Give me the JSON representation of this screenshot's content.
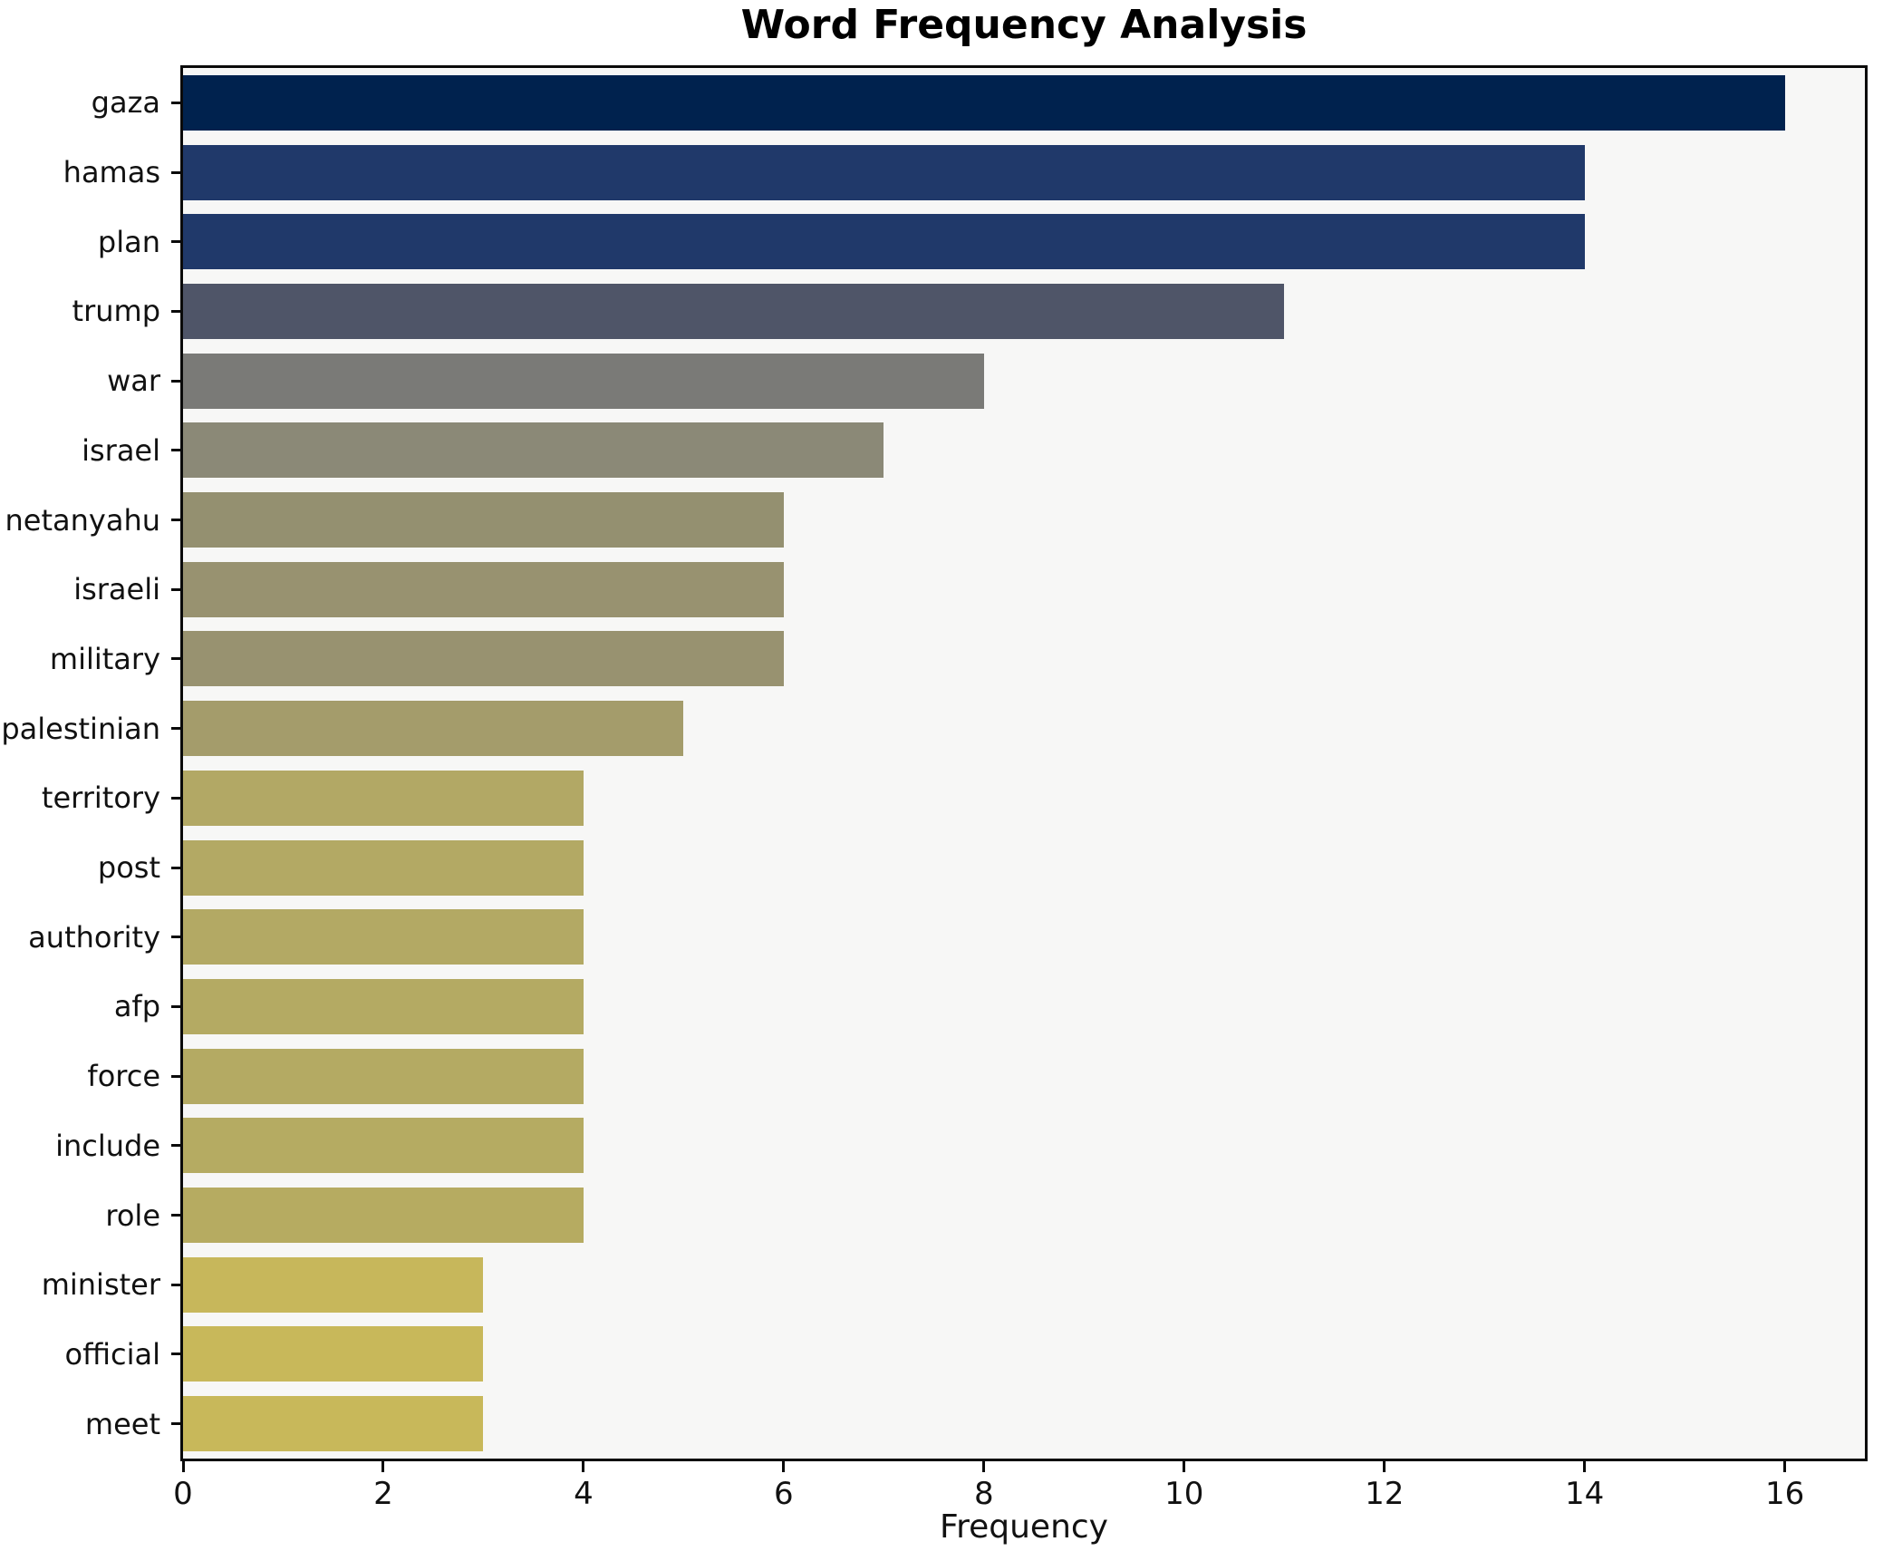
{
  "title": "Word Frequency Analysis",
  "chart_data": {
    "type": "bar",
    "orientation": "horizontal",
    "title": "Word Frequency Analysis",
    "xlabel": "Frequency",
    "ylabel": "",
    "categories": [
      "gaza",
      "hamas",
      "plan",
      "trump",
      "war",
      "israel",
      "netanyahu",
      "israeli",
      "military",
      "palestinian",
      "territory",
      "post",
      "authority",
      "afp",
      "force",
      "include",
      "role",
      "minister",
      "official",
      "meet"
    ],
    "values": [
      16,
      14,
      14,
      11,
      8,
      7,
      6,
      6,
      6,
      5,
      4,
      4,
      4,
      4,
      4,
      4,
      4,
      3,
      3,
      3
    ],
    "bar_colors": [
      "#00224e",
      "#20396a",
      "#20396a",
      "#4f5568",
      "#7a7a77",
      "#8b8977",
      "#949070",
      "#989270",
      "#989270",
      "#a49c6b",
      "#b2a865",
      "#b3a964",
      "#b3a964",
      "#b4aa63",
      "#b4aa63",
      "#b5ab62",
      "#b6ab61",
      "#c7b75b",
      "#c8b85a",
      "#c8b85a"
    ],
    "x_ticks": [
      0,
      2,
      4,
      6,
      8,
      10,
      12,
      14,
      16
    ],
    "xlim": [
      0,
      16.8
    ],
    "grid": false,
    "legend": "none",
    "plot_background": "#f7f7f6",
    "figure_background": "#ffffff",
    "text_color": "#111111"
  }
}
